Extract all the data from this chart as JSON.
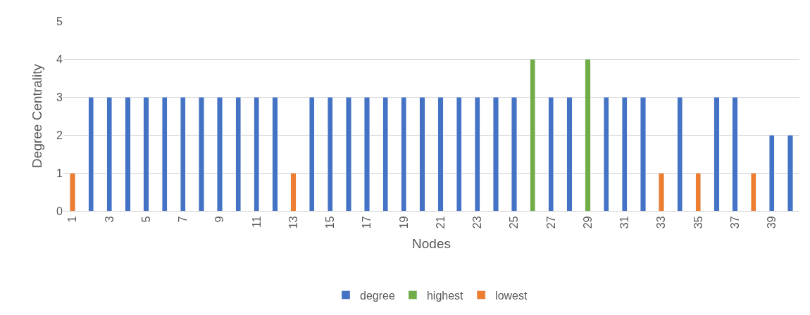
{
  "chart_data": {
    "type": "bar",
    "xlabel": "Nodes",
    "ylabel": "Degree Centrality",
    "stacked": true,
    "grid": "y",
    "legend": "bottom",
    "ylim": [
      0,
      5
    ],
    "yticks": [
      0,
      1,
      2,
      3,
      4,
      5
    ],
    "categories": [
      "1",
      null,
      "3",
      null,
      "5",
      null,
      "7",
      null,
      "9",
      null,
      "11",
      null,
      "13",
      null,
      "15",
      null,
      "17",
      null,
      "19",
      null,
      "21",
      null,
      "23",
      null,
      "25",
      null,
      "27",
      null,
      "29",
      null,
      "31",
      null,
      "33",
      null,
      "35",
      null,
      "37",
      null,
      "39",
      null
    ],
    "series": [
      {
        "name": "degree",
        "color": "#4472c4",
        "values": [
          null,
          3,
          3,
          3,
          3,
          3,
          3,
          3,
          3,
          3,
          3,
          3,
          null,
          3,
          3,
          3,
          3,
          3,
          3,
          3,
          3,
          3,
          3,
          3,
          3,
          null,
          3,
          3,
          null,
          3,
          3,
          3,
          null,
          3,
          null,
          3,
          3,
          null,
          2,
          2
        ]
      },
      {
        "name": "highest",
        "color": "#70ad47",
        "values": [
          null,
          null,
          null,
          null,
          null,
          null,
          null,
          null,
          null,
          null,
          null,
          null,
          null,
          null,
          null,
          null,
          null,
          null,
          null,
          null,
          null,
          null,
          null,
          null,
          null,
          4,
          null,
          null,
          4,
          null,
          null,
          null,
          null,
          null,
          null,
          null,
          null,
          null,
          null,
          null
        ]
      },
      {
        "name": "lowest",
        "color": "#ed7d31",
        "values": [
          1,
          null,
          null,
          null,
          null,
          null,
          null,
          null,
          null,
          null,
          null,
          null,
          1,
          null,
          null,
          null,
          null,
          null,
          null,
          null,
          null,
          null,
          null,
          null,
          null,
          null,
          null,
          null,
          null,
          null,
          null,
          null,
          1,
          null,
          1,
          null,
          null,
          1,
          null,
          null
        ]
      }
    ]
  }
}
